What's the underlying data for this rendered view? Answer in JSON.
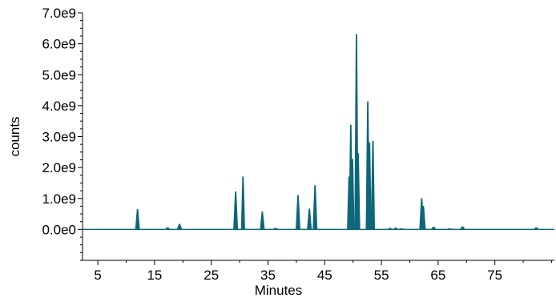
{
  "chart_data": {
    "type": "line",
    "title": "",
    "xlabel": "Minutes",
    "ylabel": "counts",
    "xlim": [
      2.3,
      85.5
    ],
    "ylim": [
      -1000000000,
      7000000000
    ],
    "x_ticks": [
      5,
      15,
      25,
      35,
      45,
      55,
      65,
      75
    ],
    "x_tick_labels": [
      "5",
      "15",
      "25",
      "35",
      "45",
      "55",
      "65",
      "75"
    ],
    "y_ticks": [
      0,
      1000000000,
      2000000000,
      3000000000,
      4000000000,
      5000000000,
      6000000000,
      7000000000
    ],
    "y_tick_labels": [
      "0.0e0",
      "1.0e9",
      "2.0e9",
      "3.0e9",
      "4.0e9",
      "5.0e9",
      "6.0e9",
      "7.0e9"
    ],
    "grid": false,
    "legend": "none",
    "color": "#0e6678",
    "baseline": 0,
    "peaks": [
      {
        "x": 12.0,
        "y": 650000000
      },
      {
        "x": 17.3,
        "y": 60000000
      },
      {
        "x": 19.4,
        "y": 170000000
      },
      {
        "x": 29.3,
        "y": 1220000000
      },
      {
        "x": 30.6,
        "y": 1700000000
      },
      {
        "x": 34.0,
        "y": 570000000
      },
      {
        "x": 36.3,
        "y": 40000000
      },
      {
        "x": 40.3,
        "y": 1100000000
      },
      {
        "x": 42.3,
        "y": 660000000
      },
      {
        "x": 43.3,
        "y": 1420000000
      },
      {
        "x": 49.3,
        "y": 1700000000
      },
      {
        "x": 49.6,
        "y": 3370000000
      },
      {
        "x": 49.9,
        "y": 2270000000
      },
      {
        "x": 50.6,
        "y": 6300000000
      },
      {
        "x": 50.9,
        "y": 2450000000
      },
      {
        "x": 52.6,
        "y": 4130000000
      },
      {
        "x": 52.9,
        "y": 2800000000
      },
      {
        "x": 53.5,
        "y": 2850000000
      },
      {
        "x": 56.5,
        "y": 40000000
      },
      {
        "x": 57.5,
        "y": 50000000
      },
      {
        "x": 58.5,
        "y": 30000000
      },
      {
        "x": 62.1,
        "y": 1000000000
      },
      {
        "x": 62.4,
        "y": 750000000
      },
      {
        "x": 64.2,
        "y": 80000000
      },
      {
        "x": 67.0,
        "y": 30000000
      },
      {
        "x": 69.3,
        "y": 90000000
      },
      {
        "x": 82.3,
        "y": 60000000
      }
    ]
  }
}
